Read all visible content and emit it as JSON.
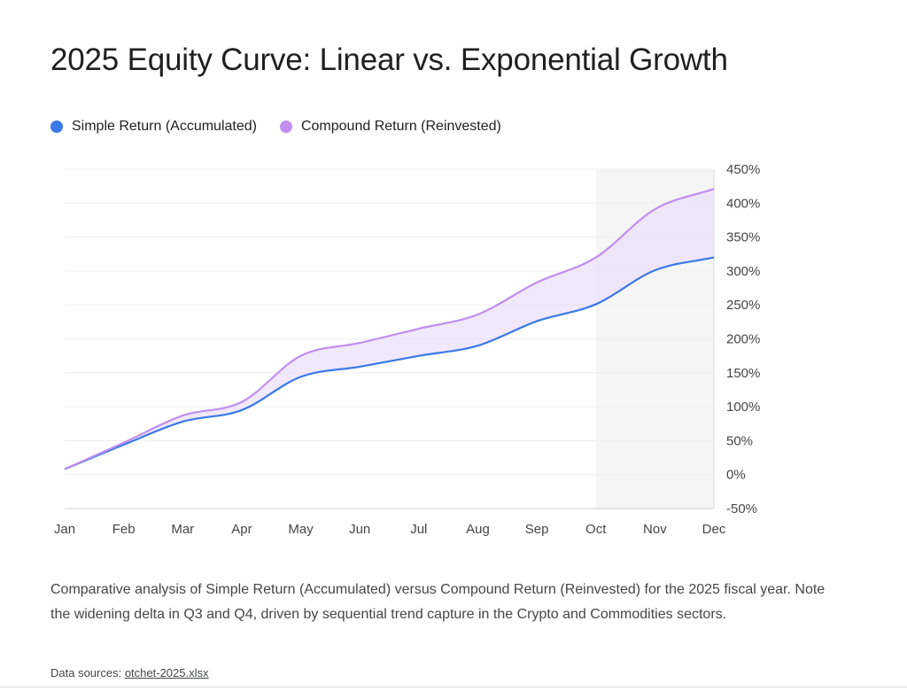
{
  "chart_data": {
    "type": "line",
    "title": "2025 Equity Curve: Linear vs. Exponential Growth",
    "categories": [
      "Jan",
      "Feb",
      "Mar",
      "Apr",
      "May",
      "Jun",
      "Jul",
      "Aug",
      "Sep",
      "Oct",
      "Nov",
      "Dec"
    ],
    "series": [
      {
        "name": "Simple Return (Accumulated)",
        "color": "#3b78e7",
        "values": [
          8,
          44,
          78,
          95,
          144,
          159,
          175,
          190,
          226,
          251,
          301,
          320
        ]
      },
      {
        "name": "Compound Return (Reinvested)",
        "color": "#c08ff0",
        "values": [
          8,
          47,
          87,
          107,
          175,
          194,
          215,
          236,
          283,
          320,
          391,
          421
        ]
      }
    ],
    "fill_between_color": "#e9dcfa",
    "highlight_range": {
      "from": "Oct",
      "to": "Dec",
      "color": "#f5f5f5"
    },
    "ylim": [
      -50,
      450
    ],
    "yticks": [
      -50,
      0,
      50,
      100,
      150,
      200,
      250,
      300,
      350,
      400,
      450
    ],
    "ytick_labels": [
      "-50%",
      "0%",
      "50%",
      "100%",
      "150%",
      "200%",
      "250%",
      "300%",
      "350%",
      "400%",
      "450%"
    ],
    "y_axis_side": "right",
    "grid": true,
    "legend_position": "top-left",
    "xlabel": "",
    "ylabel": ""
  },
  "caption": "Comparative analysis of Simple Return (Accumulated) versus Compound Return (Reinvested) for the 2025 fiscal year. Note the widening delta in Q3 and Q4, driven by sequential trend capture in the Crypto and Commodities sectors.",
  "sources": {
    "label": "Data sources:",
    "file": "otchet-2025.xlsx"
  }
}
